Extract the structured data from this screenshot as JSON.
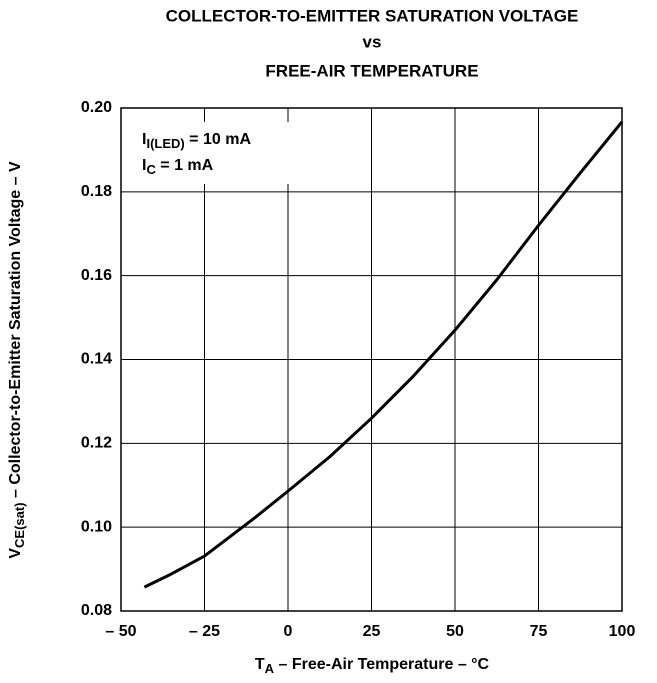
{
  "chart_data": {
    "type": "line",
    "title": [
      "COLLECTOR-TO-EMITTER SATURATION VOLTAGE",
      "vs",
      "FREE-AIR TEMPERATURE"
    ],
    "x_label": {
      "main": "T",
      "sub": "A",
      "rest": " – Free-Air Temperature – °C"
    },
    "y_label": {
      "main": "V",
      "sub": "CE(sat)",
      "rest": " – Collector-to-Emitter Saturation Voltage – V"
    },
    "annotations": [
      {
        "main": "I",
        "sub": "I(LED)",
        "rest": " = 10 mA"
      },
      {
        "main": "I",
        "sub": "C",
        "rest": " = 1 mA"
      }
    ],
    "x": [
      -43,
      -35,
      -25,
      -10,
      0,
      12.5,
      25,
      37.5,
      50,
      62.5,
      75,
      87.5,
      100
    ],
    "values": [
      0.0857,
      0.0888,
      0.0931,
      0.1022,
      0.1086,
      0.1168,
      0.126,
      0.136,
      0.147,
      0.159,
      0.172,
      0.1845,
      0.1967
    ],
    "color": "#000000",
    "xlim": [
      -50,
      100
    ],
    "ylim": [
      0.08,
      0.2
    ],
    "xticks": [
      {
        "value": -50,
        "label": "– 50"
      },
      {
        "value": -25,
        "label": "– 25"
      },
      0,
      25,
      50,
      75,
      100
    ],
    "yticks": [
      0.08,
      {
        "value": 0.1,
        "label": "0.10"
      },
      0.12,
      0.14,
      0.16,
      0.18,
      {
        "value": 0.2,
        "label": "0.20"
      }
    ],
    "grid": true
  }
}
